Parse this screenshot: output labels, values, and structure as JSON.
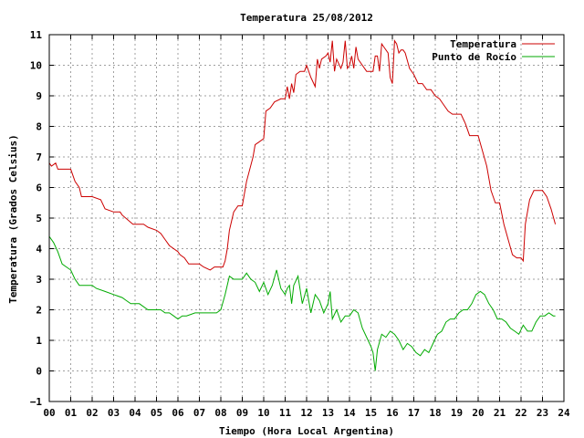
{
  "chart_data": {
    "type": "line",
    "title": "Temperatura 25/08/2012",
    "xlabel": "Tiempo (Hora Local Argentina)",
    "ylabel": "Temperatura (Grados Celsius)",
    "xlim": [
      0,
      24
    ],
    "ylim": [
      -1,
      11
    ],
    "xticks": [
      "00",
      "01",
      "02",
      "03",
      "04",
      "05",
      "06",
      "07",
      "08",
      "09",
      "10",
      "11",
      "12",
      "13",
      "14",
      "15",
      "16",
      "17",
      "18",
      "19",
      "20",
      "21",
      "22",
      "23",
      "24"
    ],
    "yticks": [
      "−1",
      "0",
      "1",
      "2",
      "3",
      "4",
      "5",
      "6",
      "7",
      "8",
      "9",
      "10",
      "11"
    ],
    "grid": true,
    "legend_position": "top-right",
    "series": [
      {
        "name": "Temperatura",
        "color": "#cc0000",
        "x": [
          0.0,
          0.1,
          0.3,
          0.4,
          0.5,
          0.6,
          1.0,
          1.2,
          1.4,
          1.5,
          2.0,
          2.4,
          2.6,
          3.0,
          3.3,
          3.4,
          3.9,
          4.0,
          4.1,
          4.4,
          4.6,
          5.0,
          5.2,
          5.4,
          5.6,
          6.0,
          6.1,
          6.3,
          6.5,
          6.9,
          7.0,
          7.2,
          7.5,
          7.7,
          7.9,
          8.1,
          8.2,
          8.3,
          8.4,
          8.6,
          8.8,
          9.0,
          9.2,
          9.5,
          9.6,
          9.8,
          10.0,
          10.1,
          10.3,
          10.5,
          10.8,
          11.0,
          11.1,
          11.2,
          11.3,
          11.4,
          11.5,
          11.7,
          11.9,
          12.0,
          12.2,
          12.4,
          12.5,
          12.6,
          12.7,
          12.9,
          13.0,
          13.1,
          13.2,
          13.3,
          13.4,
          13.6,
          13.7,
          13.8,
          13.9,
          14.0,
          14.1,
          14.2,
          14.3,
          14.4,
          14.6,
          14.8,
          15.0,
          15.1,
          15.2,
          15.3,
          15.4,
          15.5,
          15.6,
          15.8,
          15.9,
          16.0,
          16.1,
          16.2,
          16.3,
          16.4,
          16.5,
          16.6,
          16.8,
          17.0,
          17.2,
          17.4,
          17.6,
          17.8,
          18.0,
          18.2,
          18.4,
          18.6,
          18.8,
          19.0,
          19.2,
          19.4,
          19.6,
          19.8,
          20.0,
          20.2,
          20.4,
          20.6,
          20.8,
          21.0,
          21.2,
          21.4,
          21.6,
          21.8,
          22.0,
          22.1,
          22.2,
          22.4,
          22.6,
          22.8,
          23.0,
          23.2,
          23.4,
          23.6
        ],
        "values": [
          6.8,
          6.7,
          6.8,
          6.6,
          6.6,
          6.6,
          6.6,
          6.2,
          6.0,
          5.7,
          5.7,
          5.6,
          5.3,
          5.2,
          5.2,
          5.1,
          4.8,
          4.8,
          4.8,
          4.8,
          4.7,
          4.6,
          4.5,
          4.3,
          4.1,
          3.9,
          3.8,
          3.7,
          3.5,
          3.5,
          3.5,
          3.4,
          3.3,
          3.4,
          3.4,
          3.4,
          3.6,
          4.0,
          4.6,
          5.2,
          5.4,
          5.4,
          6.2,
          7.0,
          7.4,
          7.5,
          7.6,
          8.5,
          8.6,
          8.8,
          8.9,
          8.9,
          9.3,
          8.9,
          9.4,
          9.1,
          9.7,
          9.8,
          9.8,
          10.0,
          9.6,
          9.3,
          10.2,
          9.9,
          10.2,
          10.3,
          10.4,
          10.1,
          10.8,
          9.8,
          10.2,
          9.9,
          10.1,
          10.8,
          9.9,
          10.0,
          10.3,
          9.9,
          10.6,
          10.2,
          10.0,
          9.8,
          9.8,
          9.8,
          10.3,
          10.3,
          9.8,
          10.7,
          10.6,
          10.4,
          9.6,
          9.4,
          10.8,
          10.7,
          10.4,
          10.5,
          10.5,
          10.4,
          9.9,
          9.7,
          9.4,
          9.4,
          9.2,
          9.2,
          9.0,
          8.9,
          8.7,
          8.5,
          8.4,
          8.4,
          8.4,
          8.1,
          7.7,
          7.7,
          7.7,
          7.2,
          6.7,
          5.9,
          5.5,
          5.5,
          4.8,
          4.3,
          3.8,
          3.7,
          3.7,
          3.6,
          4.8,
          5.6,
          5.9,
          5.9,
          5.9,
          5.7,
          5.3,
          4.8
        ]
      },
      {
        "name": "Punto de Rocío",
        "color": "#00aa00",
        "x": [
          0.0,
          0.2,
          0.4,
          0.6,
          0.8,
          1.0,
          1.2,
          1.4,
          1.6,
          2.0,
          2.2,
          2.6,
          3.0,
          3.4,
          3.6,
          3.8,
          4.0,
          4.2,
          4.6,
          5.0,
          5.2,
          5.4,
          5.6,
          5.8,
          6.0,
          6.2,
          6.4,
          6.8,
          7.0,
          7.4,
          7.8,
          8.0,
          8.2,
          8.4,
          8.6,
          8.8,
          9.0,
          9.2,
          9.4,
          9.6,
          9.8,
          10.0,
          10.2,
          10.4,
          10.6,
          10.8,
          11.0,
          11.1,
          11.2,
          11.3,
          11.4,
          11.6,
          11.8,
          12.0,
          12.2,
          12.4,
          12.6,
          12.8,
          13.0,
          13.1,
          13.2,
          13.4,
          13.6,
          13.8,
          14.0,
          14.2,
          14.4,
          14.6,
          14.8,
          15.0,
          15.1,
          15.2,
          15.3,
          15.5,
          15.7,
          15.9,
          16.1,
          16.3,
          16.5,
          16.7,
          16.9,
          17.1,
          17.3,
          17.5,
          17.7,
          17.9,
          18.1,
          18.3,
          18.5,
          18.7,
          18.9,
          19.1,
          19.3,
          19.5,
          19.7,
          19.9,
          20.1,
          20.3,
          20.5,
          20.7,
          20.9,
          21.1,
          21.3,
          21.5,
          21.7,
          21.9,
          22.1,
          22.3,
          22.5,
          22.7,
          22.9,
          23.1,
          23.3,
          23.5,
          23.6
        ],
        "values": [
          4.4,
          4.2,
          3.9,
          3.5,
          3.4,
          3.3,
          3.0,
          2.8,
          2.8,
          2.8,
          2.7,
          2.6,
          2.5,
          2.4,
          2.3,
          2.2,
          2.2,
          2.2,
          2.0,
          2.0,
          2.0,
          1.9,
          1.9,
          1.8,
          1.7,
          1.8,
          1.8,
          1.9,
          1.9,
          1.9,
          1.9,
          2.0,
          2.5,
          3.1,
          3.0,
          3.0,
          3.0,
          3.2,
          3.0,
          2.9,
          2.6,
          2.9,
          2.5,
          2.8,
          3.3,
          2.7,
          2.5,
          2.7,
          2.8,
          2.2,
          2.8,
          3.1,
          2.2,
          2.7,
          1.9,
          2.5,
          2.3,
          1.9,
          2.2,
          2.6,
          1.7,
          2.0,
          1.6,
          1.8,
          1.8,
          2.0,
          1.9,
          1.4,
          1.1,
          0.8,
          0.6,
          0.0,
          0.7,
          1.2,
          1.1,
          1.3,
          1.2,
          1.0,
          0.7,
          0.9,
          0.8,
          0.6,
          0.5,
          0.7,
          0.6,
          0.9,
          1.2,
          1.3,
          1.6,
          1.7,
          1.7,
          1.9,
          2.0,
          2.0,
          2.2,
          2.5,
          2.6,
          2.5,
          2.2,
          2.0,
          1.7,
          1.7,
          1.6,
          1.4,
          1.3,
          1.2,
          1.5,
          1.3,
          1.3,
          1.6,
          1.8,
          1.8,
          1.9,
          1.8,
          1.8
        ]
      }
    ]
  }
}
